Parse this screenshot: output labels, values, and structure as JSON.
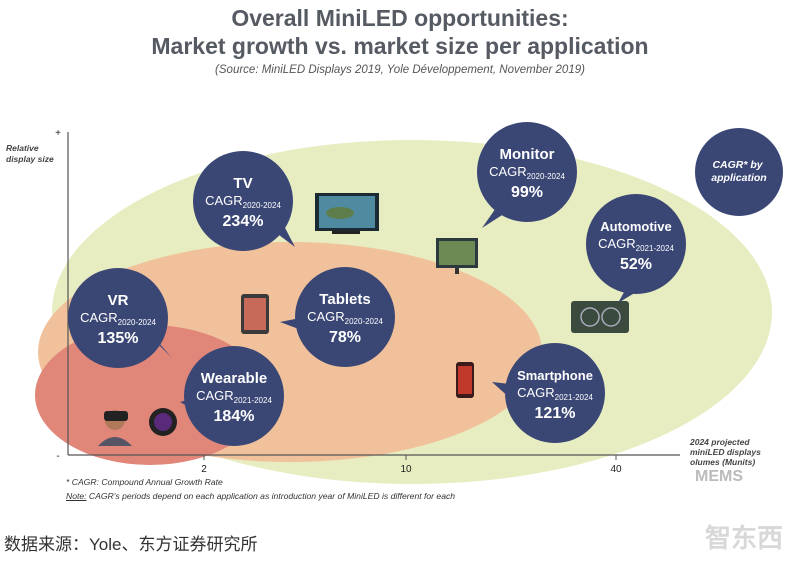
{
  "header": {
    "title_line1": "Overall MiniLED opportunities:",
    "title_line2": "Market growth vs. market size per application",
    "source": "(Source: MiniLED Displays 2019, Yole Développement, November 2019)"
  },
  "chart_data": {
    "type": "scatter",
    "subtype": "bubble",
    "title": "Market growth vs. market size per application",
    "ylabel": "Relative display size",
    "xlabel": "2024 projected miniLED displays volumes (Munits)",
    "y_axis_ends": [
      "+",
      "-"
    ],
    "xticks": [
      "2",
      "10",
      "40"
    ],
    "legend_bubble": "CAGR* by application",
    "cagr_prefix": "CAGR",
    "points": [
      {
        "name": "TV",
        "cagr_years": "2020-2024",
        "cagr": "234%"
      },
      {
        "name": "Monitor",
        "cagr_years": "2020-2024",
        "cagr": "99%"
      },
      {
        "name": "Automotive",
        "cagr_years": "2021-2024",
        "cagr": "52%"
      },
      {
        "name": "VR",
        "cagr_years": "2020-2024",
        "cagr": "135%"
      },
      {
        "name": "Tablets",
        "cagr_years": "2020-2024",
        "cagr": "78%"
      },
      {
        "name": "Wearable",
        "cagr_years": "2021-2024",
        "cagr": "184%"
      },
      {
        "name": "Smartphone",
        "cagr_years": "2021-2024",
        "cagr": "121%"
      }
    ],
    "colors": {
      "bubble": "#3a4775",
      "outer": "#e7edc0",
      "middle": "#f0c19b",
      "inner": "#e0877a",
      "axis": "#555555"
    }
  },
  "notes": {
    "line1": "* CAGR: Compound Annual Growth Rate",
    "line2_prefix": "Note:",
    "line2_rest": " CAGR's periods depend on each application as introduction year of MiniLED is different for each"
  },
  "footer": {
    "source_text": "数据来源：Yole、东方证券研究所",
    "wm1": "MEMS",
    "wm2": "智东西"
  }
}
